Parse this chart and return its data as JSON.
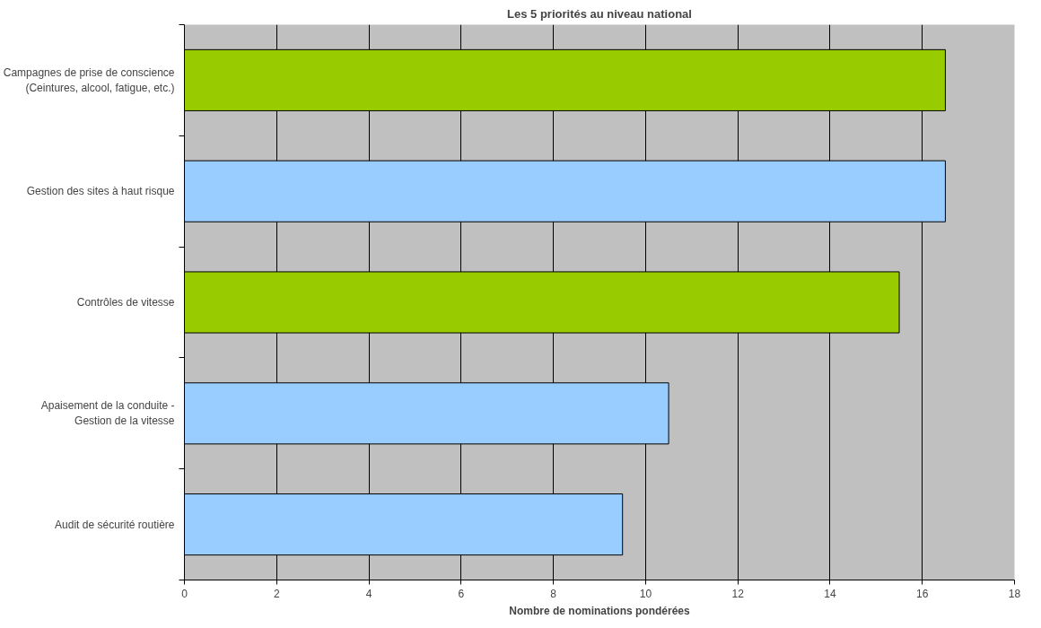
{
  "chart_data": {
    "type": "bar",
    "orientation": "horizontal",
    "title": "Les 5 priorités au niveau national",
    "xlabel": "Nombre de nominations pondérées",
    "categories": [
      "Campagnes de prise de conscience\n(Ceintures, alcool, fatigue, etc.)",
      "Gestion des sites à haut risque",
      "Contrôles de vitesse",
      "Apaisement de la conduite -\nGestion de la vitesse",
      "Audit de sécurité routière"
    ],
    "values": [
      16.5,
      16.5,
      15.5,
      10.5,
      9.5
    ],
    "colors": [
      "#99cc00",
      "#99ccff",
      "#99cc00",
      "#99ccff",
      "#99ccff"
    ],
    "xlim": [
      0,
      18
    ],
    "xticks": [
      0,
      2,
      4,
      6,
      8,
      10,
      12,
      14,
      16,
      18
    ],
    "grid": "x"
  }
}
